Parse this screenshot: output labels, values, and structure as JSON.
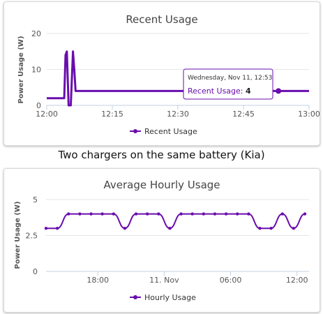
{
  "caption": "Two chargers on the same battery (Kia)",
  "colors": {
    "series": "#6a0dad",
    "axis": "#c0d0e0",
    "grid": "#e6e6e6"
  },
  "chart_data": [
    {
      "type": "line",
      "title": "Recent Usage",
      "ylabel": "Power Usage (W)",
      "xlabel": "",
      "x_ticks": [
        "12:00",
        "12:15",
        "12:30",
        "12:45",
        "13:00"
      ],
      "y_ticks": [
        "0",
        "10",
        "20"
      ],
      "ylim": [
        0,
        20
      ],
      "xlim": [
        "12:00",
        "13:00"
      ],
      "series": [
        {
          "name": "Recent Usage",
          "x": [
            "12:00",
            "12:03",
            "12:04",
            "12:04.3",
            "12:04.6",
            "12:05",
            "12:05.5",
            "12:06",
            "12:06.3",
            "12:06.6",
            "12:07",
            "12:10",
            "12:30",
            "12:53",
            "13:00"
          ],
          "values": [
            2,
            2,
            2,
            14,
            15,
            0,
            0,
            15,
            10,
            4,
            4,
            4,
            4,
            4,
            4
          ]
        }
      ],
      "tooltip": {
        "header": "Wednesday, Nov 11, 12:53",
        "label": "Recent Usage: ",
        "value": "4"
      },
      "legend": "bottom-center",
      "grid": true
    },
    {
      "type": "line",
      "title": "Average Hourly Usage",
      "ylabel": "Power Usage (W)",
      "xlabel": "",
      "x_ticks": [
        "18:00",
        "11. Nov",
        "06:00",
        "12:00"
      ],
      "y_ticks": [
        "0",
        "2.5",
        "5"
      ],
      "ylim": [
        0,
        5
      ],
      "series": [
        {
          "name": "Hourly Usage",
          "x": [
            0,
            1,
            2,
            3,
            4,
            5,
            6,
            7,
            8,
            9,
            10,
            11,
            12,
            13,
            14,
            15,
            16,
            17,
            18,
            19,
            20,
            21,
            22,
            23
          ],
          "values": [
            3,
            3,
            4,
            4,
            4,
            4,
            4,
            3,
            4,
            4,
            4,
            3,
            4,
            4,
            4,
            4,
            4,
            4,
            4,
            3,
            3,
            4,
            3,
            4
          ]
        }
      ],
      "legend": "bottom-center",
      "grid": true
    }
  ]
}
